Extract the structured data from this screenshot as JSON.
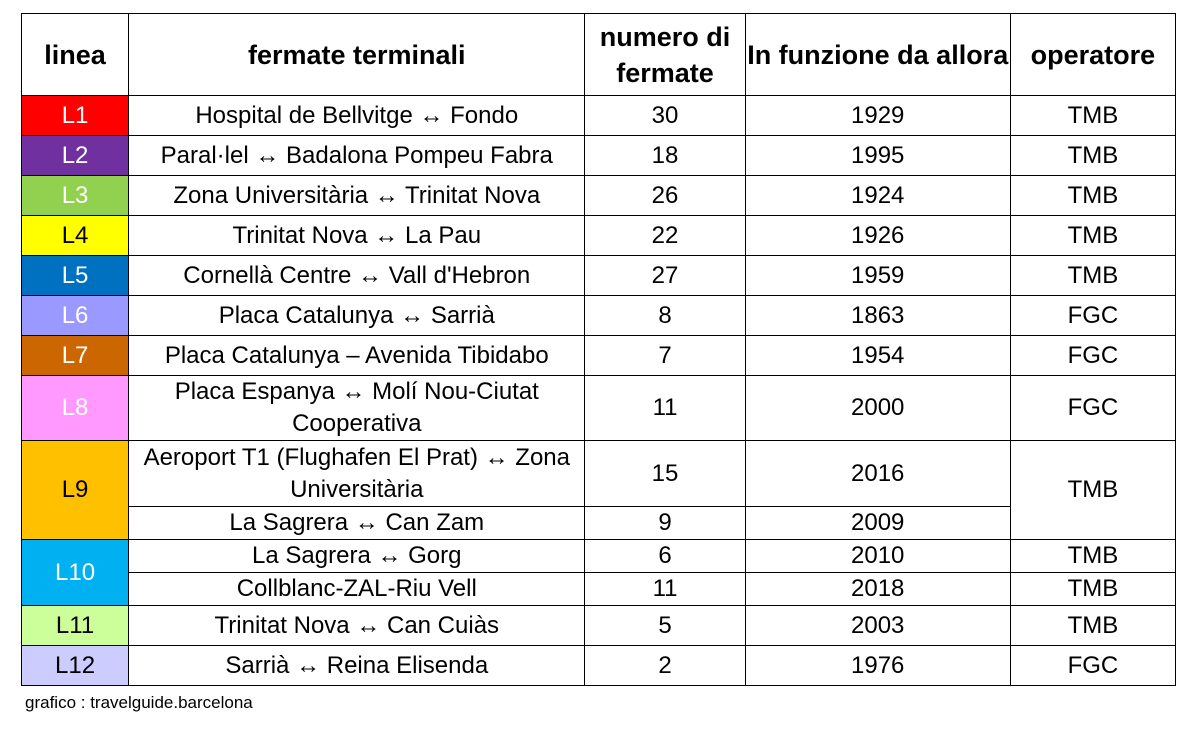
{
  "headers": {
    "line": "linea",
    "terminals": "fermate terminali",
    "stops": "numero di fermate",
    "since": "In funzione da allora",
    "operator": "operatore"
  },
  "lines": [
    {
      "line": "L1",
      "color": "#FF0000",
      "text_color": "#FFFFFF",
      "routes": [
        {
          "terminals": "Hospital de Bellvitge ↔ Fondo",
          "stops": "30",
          "since": "1929"
        }
      ],
      "operator": "TMB"
    },
    {
      "line": "L2",
      "color": "#7030A0",
      "text_color": "#FFFFFF",
      "routes": [
        {
          "terminals": "Paral·lel ↔ Badalona Pompeu Fabra",
          "stops": "18",
          "since": "1995"
        }
      ],
      "operator": "TMB"
    },
    {
      "line": "L3",
      "color": "#92D050",
      "text_color": "#FFFFFF",
      "routes": [
        {
          "terminals": "Zona Universitària ↔ Trinitat Nova",
          "stops": "26",
          "since": "1924"
        }
      ],
      "operator": "TMB"
    },
    {
      "line": "L4",
      "color": "#FFFF00",
      "text_color": "#000000",
      "routes": [
        {
          "terminals": "Trinitat Nova ↔ La Pau",
          "stops": "22",
          "since": "1926"
        }
      ],
      "operator": "TMB"
    },
    {
      "line": "L5",
      "color": "#0070C0",
      "text_color": "#FFFFFF",
      "routes": [
        {
          "terminals": "Cornellà Centre ↔ Vall d'Hebron",
          "stops": "27",
          "since": "1959"
        }
      ],
      "operator": "TMB"
    },
    {
      "line": "L6",
      "color": "#9999FF",
      "text_color": "#FFFFFF",
      "routes": [
        {
          "terminals": "Placa Catalunya ↔ Sarrià",
          "stops": "8",
          "since": "1863"
        }
      ],
      "operator": "FGC"
    },
    {
      "line": "L7",
      "color": "#CC6600",
      "text_color": "#FFFFFF",
      "routes": [
        {
          "terminals": "Placa Catalunya – Avenida Tibidabo",
          "stops": "7",
          "since": "1954"
        }
      ],
      "operator": "FGC"
    },
    {
      "line": "L8",
      "color": "#FF99FF",
      "text_color": "#FFFFFF",
      "routes": [
        {
          "terminals": "Placa Espanya ↔ Molí Nou-Ciutat Cooperativa",
          "stops": "11",
          "since": "2000"
        }
      ],
      "operator": "FGC"
    },
    {
      "line": "L9",
      "color": "#FFC000",
      "text_color": "#000000",
      "routes": [
        {
          "terminals": "Aeroport T1 (Flughafen El Prat) ↔ Zona Universitària",
          "stops": "15",
          "since": "2016"
        },
        {
          "terminals": "La Sagrera ↔ Can Zam",
          "stops": "9",
          "since": "2009"
        }
      ],
      "operator": "TMB"
    },
    {
      "line": "L10",
      "color": "#00B0F0",
      "text_color": "#FFFFFF",
      "routes": [
        {
          "terminals": "La Sagrera ↔ Gorg",
          "stops": "6",
          "since": "2010",
          "operator": "TMB"
        },
        {
          "terminals": "Collblanc-ZAL-Riu Vell",
          "stops": "11",
          "since": "2018",
          "operator": "TMB"
        }
      ],
      "operator": ""
    },
    {
      "line": "L11",
      "color": "#CCFF99",
      "text_color": "#000000",
      "routes": [
        {
          "terminals": "Trinitat Nova ↔ Can Cuiàs",
          "stops": "5",
          "since": "2003"
        }
      ],
      "operator": "TMB"
    },
    {
      "line": "L12",
      "color": "#CCCCFF",
      "text_color": "#000000",
      "routes": [
        {
          "terminals": "Sarrià ↔ Reina Elisenda",
          "stops": "2",
          "since": "1976"
        }
      ],
      "operator": "FGC"
    }
  ],
  "credit": "grafico : travelguide.barcelona"
}
